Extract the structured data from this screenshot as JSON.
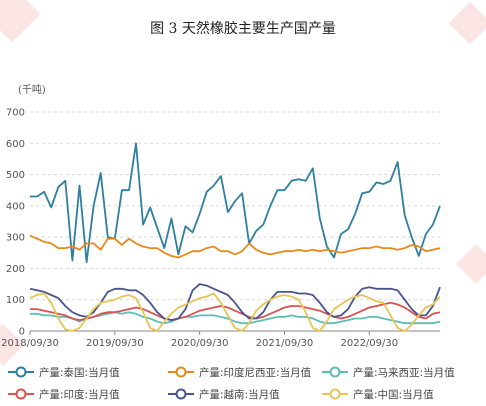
{
  "caption": "图 3  天然橡胶主要生产国产量",
  "chart_data": {
    "type": "line",
    "title": "",
    "ylabel": "(千吨)",
    "ylim": [
      0,
      700
    ],
    "y_ticks": [
      0,
      100,
      200,
      300,
      400,
      500,
      600,
      700
    ],
    "x_tick_labels": [
      "2018/09/30",
      "2019/09/30",
      "2020/09/30",
      "2021/09/30",
      "2022/09/30"
    ],
    "x_range_months": [
      "2018-09",
      "2023-12"
    ],
    "grid": "horizontal dashed",
    "legend": "bottom",
    "series": [
      {
        "name": "产量:泰国:当月值",
        "color": "#2e7fa0",
        "values": [
          430,
          430,
          445,
          395,
          460,
          480,
          225,
          465,
          220,
          400,
          505,
          300,
          295,
          450,
          450,
          600,
          340,
          395,
          330,
          265,
          360,
          245,
          335,
          315,
          375,
          445,
          465,
          495,
          380,
          415,
          440,
          280,
          320,
          340,
          400,
          450,
          450,
          480,
          485,
          480,
          520,
          360,
          270,
          235,
          310,
          325,
          375,
          440,
          445,
          475,
          470,
          480,
          540,
          370,
          300,
          240,
          310,
          340,
          400
        ]
      },
      {
        "name": "产量:印度尼西亚:当月值",
        "color": "#e8891d",
        "values": [
          305,
          295,
          285,
          280,
          265,
          265,
          270,
          260,
          280,
          280,
          260,
          295,
          295,
          275,
          295,
          280,
          270,
          265,
          265,
          250,
          240,
          235,
          245,
          255,
          255,
          265,
          270,
          255,
          255,
          245,
          255,
          280,
          260,
          250,
          245,
          250,
          255,
          255,
          260,
          255,
          260,
          255,
          260,
          255,
          250,
          255,
          260,
          265,
          265,
          270,
          265,
          265,
          260,
          265,
          275,
          270,
          255,
          260,
          265
        ]
      },
      {
        "name": "产量:马来西亚:当月值",
        "color": "#5bbcb8",
        "values": [
          55,
          55,
          50,
          50,
          45,
          45,
          40,
          30,
          40,
          45,
          50,
          55,
          60,
          55,
          60,
          55,
          45,
          40,
          30,
          25,
          30,
          40,
          45,
          45,
          50,
          50,
          50,
          45,
          40,
          30,
          25,
          25,
          30,
          35,
          40,
          45,
          45,
          50,
          45,
          45,
          40,
          30,
          25,
          25,
          30,
          35,
          40,
          40,
          45,
          45,
          40,
          35,
          30,
          25,
          25,
          25,
          25,
          25,
          30
        ]
      },
      {
        "name": "产量:印度:当月值",
        "color": "#d9534f",
        "values": [
          70,
          70,
          65,
          60,
          55,
          50,
          40,
          35,
          40,
          45,
          55,
          60,
          60,
          65,
          70,
          75,
          70,
          60,
          50,
          40,
          35,
          40,
          45,
          55,
          65,
          70,
          75,
          80,
          75,
          65,
          55,
          45,
          40,
          45,
          55,
          65,
          75,
          80,
          80,
          75,
          70,
          65,
          55,
          45,
          40,
          45,
          55,
          65,
          75,
          80,
          85,
          90,
          85,
          75,
          60,
          45,
          40,
          55,
          60
        ]
      },
      {
        "name": "产量:越南:当月值",
        "color": "#4a5490",
        "values": [
          135,
          130,
          125,
          115,
          105,
          80,
          60,
          50,
          45,
          60,
          90,
          125,
          135,
          135,
          130,
          130,
          115,
          90,
          60,
          40,
          35,
          40,
          70,
          130,
          150,
          145,
          135,
          125,
          115,
          90,
          60,
          40,
          40,
          60,
          100,
          125,
          125,
          125,
          120,
          120,
          115,
          90,
          60,
          45,
          50,
          70,
          110,
          135,
          140,
          135,
          135,
          135,
          130,
          100,
          70,
          50,
          50,
          80,
          140
        ]
      },
      {
        "name": "产量:中国:当月值",
        "color": "#e8c454",
        "values": [
          105,
          115,
          120,
          90,
          40,
          5,
          0,
          10,
          40,
          70,
          90,
          95,
          100,
          110,
          115,
          105,
          60,
          10,
          0,
          30,
          55,
          75,
          85,
          95,
          105,
          110,
          120,
          90,
          50,
          10,
          0,
          25,
          65,
          85,
          100,
          110,
          115,
          110,
          100,
          60,
          10,
          0,
          30,
          70,
          85,
          100,
          110,
          115,
          105,
          95,
          90,
          50,
          10,
          0,
          20,
          50,
          75,
          85,
          110
        ]
      }
    ]
  }
}
